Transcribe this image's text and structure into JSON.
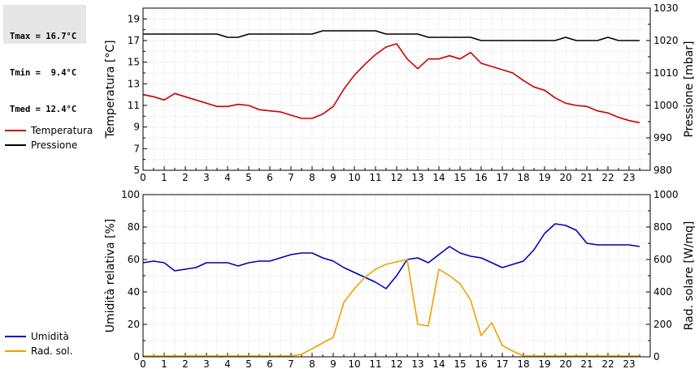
{
  "stats": {
    "tmax": "Tmax = 16.7°C",
    "tmin": "Tmin =  9.4°C",
    "tmed": "Tmed = 12.4°C"
  },
  "legend_top": [
    {
      "label": "Temperatura",
      "color": "#cc0000"
    },
    {
      "label": "Pressione",
      "color": "#000000"
    }
  ],
  "legend_bottom": [
    {
      "label": "Umidità",
      "color": "#0000b4"
    },
    {
      "label": "Rad. sol.",
      "color": "#f0a000"
    }
  ],
  "chart_data": [
    {
      "type": "line",
      "xlim": [
        0,
        24
      ],
      "x_ticks": [
        "0",
        "1",
        "2",
        "3",
        "4",
        "5",
        "6",
        "7",
        "8",
        "9",
        "10",
        "11",
        "12",
        "13",
        "14",
        "15",
        "16",
        "17",
        "18",
        "19",
        "20",
        "21",
        "22",
        "23"
      ],
      "ylabel": "Temperatura [°C]",
      "ylim": [
        5,
        20
      ],
      "y_ticks": [
        "5",
        "7",
        "9",
        "11",
        "13",
        "15",
        "17",
        "19"
      ],
      "y2label": "Pressione [mbar]",
      "y2lim": [
        980,
        1030
      ],
      "y2_ticks": [
        "980",
        "990",
        "1000",
        "1010",
        "1020",
        "1030"
      ],
      "grid": true,
      "series": [
        {
          "name": "Temperatura",
          "axis": "left",
          "color": "#cc0000",
          "x": [
            0,
            0.5,
            1,
            1.5,
            2,
            2.5,
            3,
            3.5,
            4,
            4.5,
            5,
            5.5,
            6,
            6.5,
            7,
            7.5,
            8,
            8.5,
            9,
            9.5,
            10,
            10.5,
            11,
            11.5,
            12,
            12.5,
            13,
            13.5,
            14,
            14.5,
            15,
            15.5,
            16,
            16.5,
            17,
            17.5,
            18,
            18.5,
            19,
            19.5,
            20,
            20.5,
            21,
            21.5,
            22,
            22.5,
            23,
            23.5
          ],
          "values": [
            12.0,
            11.8,
            11.5,
            12.1,
            11.8,
            11.5,
            11.2,
            10.9,
            10.9,
            11.1,
            11.0,
            10.6,
            10.5,
            10.4,
            10.1,
            9.8,
            9.8,
            10.2,
            10.9,
            12.5,
            13.8,
            14.8,
            15.7,
            16.4,
            16.7,
            15.3,
            14.4,
            15.3,
            15.3,
            15.6,
            15.3,
            15.9,
            14.9,
            14.6,
            14.3,
            14.0,
            13.3,
            12.7,
            12.4,
            11.7,
            11.2,
            11.0,
            10.9,
            10.5,
            10.3,
            9.9,
            9.6,
            9.4
          ]
        },
        {
          "name": "Pressione",
          "axis": "right",
          "color": "#000000",
          "x": [
            0,
            1,
            2,
            3,
            3.5,
            4,
            4.5,
            5,
            6,
            7,
            8,
            8.5,
            9,
            10,
            11,
            11.5,
            12,
            13,
            13.5,
            14,
            15,
            15.5,
            16,
            17,
            18,
            19,
            19.5,
            20,
            20.5,
            21,
            21.5,
            22,
            22.5,
            23,
            23.5
          ],
          "values": [
            1022,
            1022,
            1022,
            1022,
            1022,
            1021,
            1021,
            1022,
            1022,
            1022,
            1022,
            1023,
            1023,
            1023,
            1023,
            1022,
            1022,
            1022,
            1021,
            1021,
            1021,
            1021,
            1020,
            1020,
            1020,
            1020,
            1020,
            1021,
            1020,
            1020,
            1020,
            1021,
            1020,
            1020,
            1020
          ]
        }
      ]
    },
    {
      "type": "line",
      "xlim": [
        0,
        24
      ],
      "x_ticks": [
        "0",
        "1",
        "2",
        "3",
        "4",
        "5",
        "6",
        "7",
        "8",
        "9",
        "10",
        "11",
        "12",
        "13",
        "14",
        "15",
        "16",
        "17",
        "18",
        "19",
        "20",
        "21",
        "22",
        "23"
      ],
      "ylabel": "Umidità relativa [%]",
      "ylim": [
        0,
        100
      ],
      "y_ticks": [
        "0",
        "20",
        "40",
        "60",
        "80",
        "100"
      ],
      "y2label": "Rad. solare [W/mq]",
      "y2lim": [
        0,
        1000
      ],
      "y2_ticks": [
        "0",
        "200",
        "400",
        "600",
        "800",
        "1000"
      ],
      "grid": true,
      "series": [
        {
          "name": "Umidità",
          "axis": "left",
          "color": "#0000b4",
          "x": [
            0,
            0.5,
            1,
            1.5,
            2,
            2.5,
            3,
            3.5,
            4,
            4.5,
            5,
            5.5,
            6,
            6.5,
            7,
            7.5,
            8,
            8.5,
            9,
            9.5,
            10,
            10.5,
            11,
            11.5,
            12,
            12.5,
            13,
            13.5,
            14,
            14.5,
            15,
            15.5,
            16,
            16.5,
            17,
            17.5,
            18,
            18.5,
            19,
            19.5,
            20,
            20.5,
            21,
            21.5,
            22,
            22.5,
            23,
            23.5
          ],
          "values": [
            58,
            59,
            58,
            53,
            54,
            55,
            58,
            58,
            58,
            56,
            58,
            59,
            59,
            61,
            63,
            64,
            64,
            61,
            59,
            55,
            52,
            49,
            46,
            42,
            50,
            60,
            61,
            58,
            63,
            68,
            64,
            62,
            61,
            58,
            55,
            57,
            59,
            66,
            76,
            82,
            81,
            78,
            70,
            69,
            69,
            69,
            69,
            68
          ]
        },
        {
          "name": "Rad. sol.",
          "axis": "right",
          "color": "#f0a000",
          "x": [
            0,
            1,
            2,
            3,
            4,
            5,
            6,
            7,
            7.5,
            8,
            8.5,
            9,
            9.5,
            10,
            10.5,
            11,
            11.5,
            12,
            12.5,
            13,
            13.5,
            14,
            14.5,
            15,
            15.5,
            16,
            16.5,
            17,
            17.5,
            18,
            19,
            20,
            21,
            22,
            23,
            23.5
          ],
          "values": [
            5,
            5,
            5,
            5,
            5,
            5,
            5,
            5,
            15,
            50,
            85,
            120,
            335,
            420,
            490,
            540,
            570,
            585,
            600,
            200,
            190,
            540,
            500,
            450,
            350,
            130,
            210,
            70,
            35,
            5,
            5,
            5,
            5,
            5,
            5,
            5
          ]
        }
      ]
    }
  ]
}
